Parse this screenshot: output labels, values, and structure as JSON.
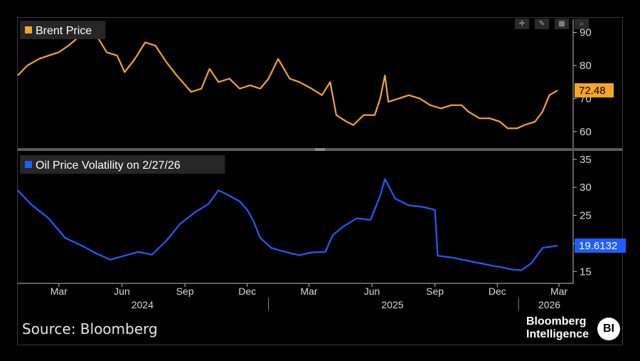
{
  "source": "Source: Bloomberg",
  "logo": {
    "line1": "Bloomberg",
    "line2": "Intelligence",
    "badge": "BI"
  },
  "toolbar": {
    "icons": [
      "crosshair-icon",
      "pencil-icon",
      "grid-icon",
      "magnifier-icon"
    ]
  },
  "colors": {
    "brent": "#f5a623",
    "volatility": "#1e5eff",
    "background": "#000000"
  },
  "chart_data": [
    {
      "type": "line",
      "legend": "Brent Price",
      "ylim": [
        55,
        94
      ],
      "yticks": [
        60,
        70,
        80,
        90
      ],
      "last_value_label": "72.48",
      "series": [
        {
          "name": "Brent Price",
          "x": [
            "2024-01-01",
            "2024-01-15",
            "2024-02-01",
            "2024-02-15",
            "2024-03-01",
            "2024-03-15",
            "2024-04-01",
            "2024-04-10",
            "2024-04-25",
            "2024-05-10",
            "2024-05-25",
            "2024-06-05",
            "2024-06-20",
            "2024-07-05",
            "2024-07-20",
            "2024-08-05",
            "2024-08-20",
            "2024-09-10",
            "2024-09-25",
            "2024-10-07",
            "2024-10-20",
            "2024-11-05",
            "2024-11-20",
            "2024-12-05",
            "2024-12-20",
            "2025-01-01",
            "2025-01-15",
            "2025-02-01",
            "2025-02-15",
            "2025-03-05",
            "2025-03-20",
            "2025-04-01",
            "2025-04-10",
            "2025-04-25",
            "2025-05-05",
            "2025-05-20",
            "2025-06-05",
            "2025-06-13",
            "2025-06-20",
            "2025-06-25",
            "2025-07-10",
            "2025-07-25",
            "2025-08-10",
            "2025-08-25",
            "2025-09-10",
            "2025-09-25",
            "2025-10-10",
            "2025-10-20",
            "2025-11-05",
            "2025-11-20",
            "2025-12-05",
            "2025-12-16",
            "2025-12-30",
            "2026-01-10",
            "2026-01-25",
            "2026-02-05",
            "2026-02-15",
            "2026-02-27"
          ],
          "values": [
            77,
            80,
            82,
            83,
            84,
            86,
            89,
            91,
            89,
            84,
            83,
            78,
            82,
            87,
            86,
            81,
            77,
            72,
            73,
            79,
            75,
            76,
            73,
            74,
            73,
            76,
            82,
            76,
            75,
            73,
            71,
            75,
            65,
            63,
            62,
            65,
            65,
            70,
            77,
            69,
            70,
            71,
            70,
            68,
            67,
            68,
            68,
            66,
            64,
            64,
            63,
            61,
            61,
            62,
            63,
            66,
            71,
            72.48
          ]
        }
      ]
    },
    {
      "type": "line",
      "legend": "Oil Price Volatility on 2/27/26",
      "ylim": [
        13,
        36
      ],
      "yticks": [
        15,
        20,
        25,
        30,
        35
      ],
      "last_value_label": "19.6132",
      "series": [
        {
          "name": "Oil Price Volatility on 2/27/26",
          "x": [
            "2024-01-01",
            "2024-01-20",
            "2024-02-15",
            "2024-03-10",
            "2024-04-05",
            "2024-04-25",
            "2024-05-15",
            "2024-06-05",
            "2024-06-25",
            "2024-07-15",
            "2024-08-05",
            "2024-08-25",
            "2024-09-15",
            "2024-10-05",
            "2024-10-20",
            "2024-11-05",
            "2024-11-20",
            "2024-12-01",
            "2024-12-10",
            "2024-12-20",
            "2025-01-05",
            "2025-01-25",
            "2025-02-15",
            "2025-03-05",
            "2025-03-25",
            "2025-04-05",
            "2025-04-20",
            "2025-05-10",
            "2025-05-30",
            "2025-06-13",
            "2025-06-20",
            "2025-07-05",
            "2025-07-25",
            "2025-08-15",
            "2025-09-01",
            "2025-09-05",
            "2025-09-25",
            "2025-10-15",
            "2025-11-05",
            "2025-11-25",
            "2025-12-10",
            "2025-12-20",
            "2026-01-05",
            "2026-01-20",
            "2026-02-05",
            "2026-02-27"
          ],
          "values": [
            29.5,
            27,
            24.5,
            21,
            19.5,
            18.2,
            17.1,
            17.8,
            18.5,
            18,
            20.5,
            23.5,
            25.5,
            27,
            29.5,
            28.5,
            27.5,
            26,
            24,
            21,
            19.2,
            18.5,
            17.9,
            18.4,
            18.5,
            21.5,
            23,
            24.5,
            24.2,
            28.5,
            31.5,
            28,
            26.8,
            26.5,
            26,
            17.8,
            17.5,
            17,
            16.5,
            16,
            15.7,
            15.4,
            15.2,
            16.5,
            19.2,
            19.61
          ]
        }
      ]
    }
  ],
  "xaxis": {
    "months": [
      {
        "label": "Mar",
        "date": "2024-03-01"
      },
      {
        "label": "Jun",
        "date": "2024-06-01"
      },
      {
        "label": "Sep",
        "date": "2024-09-01"
      },
      {
        "label": "Dec",
        "date": "2024-12-01"
      },
      {
        "label": "Mar",
        "date": "2025-03-01"
      },
      {
        "label": "Jun",
        "date": "2025-06-01"
      },
      {
        "label": "Sep",
        "date": "2025-09-01"
      },
      {
        "label": "Dec",
        "date": "2025-12-01"
      },
      {
        "label": "Mar",
        "date": "2026-03-01"
      }
    ],
    "years": [
      {
        "label": "2024",
        "date": "2024-07-01"
      },
      {
        "label": "2025",
        "date": "2025-07-01"
      },
      {
        "label": "2026",
        "date": "2026-02-15"
      }
    ],
    "start": "2024-01-01",
    "end": "2026-03-01"
  }
}
